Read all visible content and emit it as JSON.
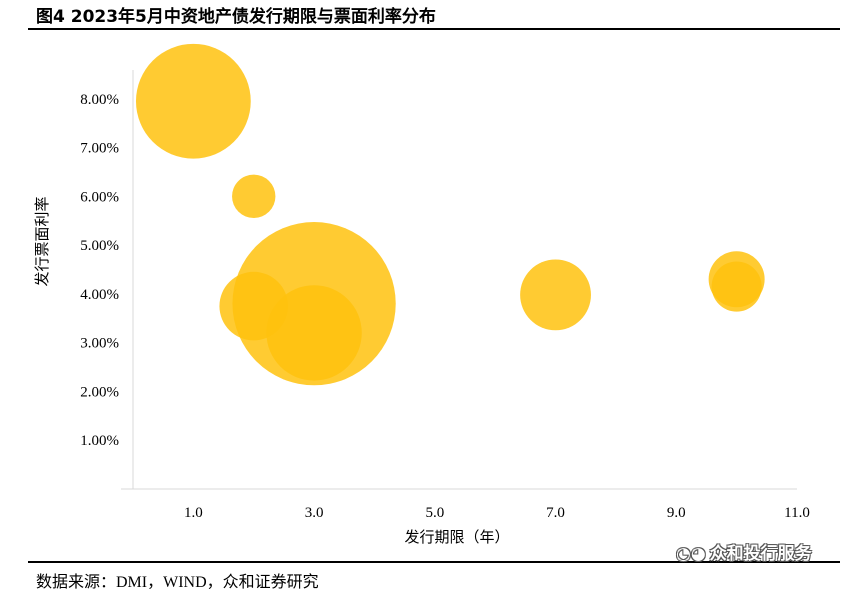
{
  "figure": {
    "title": "图4 2023年5月中资地产债发行期限与票面利率分布",
    "source": "数据来源：DMI，WIND，众和证券研究",
    "watermark": "众和投行服务"
  },
  "chart_data": {
    "type": "scatter",
    "subtype": "bubble",
    "title": "图4 2023年5月中资地产债发行期限与票面利率分布",
    "xlabel": "发行期限（年）",
    "ylabel": "发行票面利率",
    "xlim": [
      0,
      11
    ],
    "ylim": [
      0,
      0.09
    ],
    "x_ticks": [
      "1.0",
      "3.0",
      "5.0",
      "7.0",
      "9.0",
      "11.0"
    ],
    "y_ticks": [
      "1.00%",
      "2.00%",
      "3.00%",
      "4.00%",
      "5.00%",
      "6.00%",
      "7.00%",
      "8.00%"
    ],
    "grid": false,
    "color": "#FFC20E",
    "points": [
      {
        "x": 1.0,
        "y": 0.0795,
        "size": 4.2
      },
      {
        "x": 2.0,
        "y": 0.06,
        "size": 0.6
      },
      {
        "x": 2.0,
        "y": 0.0375,
        "size": 1.5
      },
      {
        "x": 3.0,
        "y": 0.038,
        "size": 8.5
      },
      {
        "x": 3.0,
        "y": 0.032,
        "size": 2.9
      },
      {
        "x": 7.0,
        "y": 0.0398,
        "size": 1.6
      },
      {
        "x": 10.0,
        "y": 0.043,
        "size": 1.0
      },
      {
        "x": 10.0,
        "y": 0.0415,
        "size": 0.8
      }
    ]
  }
}
